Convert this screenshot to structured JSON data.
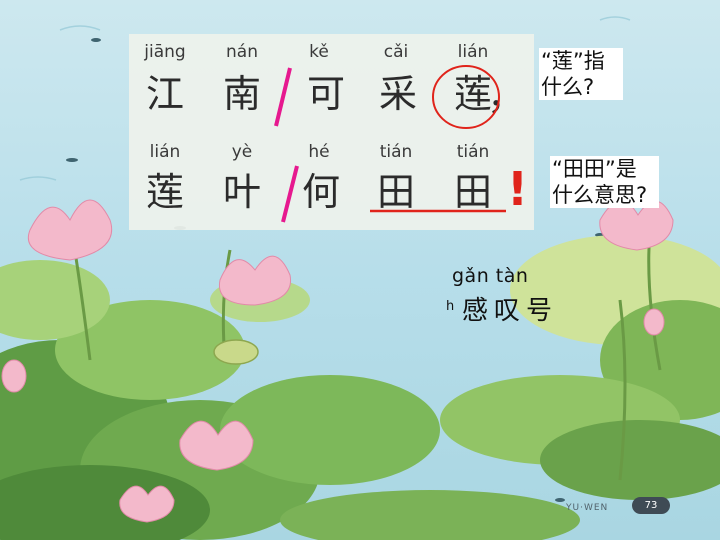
{
  "background": {
    "sky_top": "#c9e6ef",
    "water": "#a8d8e4",
    "leaf_dark": "#5d9a44",
    "leaf_light": "#9bcc6c",
    "lotus_pink": "#f2b6c8",
    "annotation_red": "#e0241b",
    "annotation_magenta": "#e6198f"
  },
  "poem": {
    "line1": [
      {
        "pinyin": "jiāng",
        "hanzi": "江"
      },
      {
        "pinyin": "nán",
        "hanzi": "南"
      },
      {
        "pinyin": "kě",
        "hanzi": "可"
      },
      {
        "pinyin": "cǎi",
        "hanzi": "采"
      },
      {
        "pinyin": "lián",
        "hanzi": "莲"
      }
    ],
    "line1_punct": "，",
    "line2": [
      {
        "pinyin": "lián",
        "hanzi": "莲"
      },
      {
        "pinyin": "yè",
        "hanzi": "叶"
      },
      {
        "pinyin": "hé",
        "hanzi": "何"
      },
      {
        "pinyin": "tián",
        "hanzi": "田"
      },
      {
        "pinyin": "tián",
        "hanzi": "田"
      }
    ],
    "line2_punct": "!"
  },
  "notes": {
    "lian_question": "“莲”指什么?",
    "tiantian_question": "“田田”是什么意思?"
  },
  "gantan": {
    "pinyin": "gǎn tàn",
    "pinyin_fragment": "h",
    "label": "感叹号"
  },
  "footer": {
    "label": "YU·WEN",
    "page": "73"
  }
}
